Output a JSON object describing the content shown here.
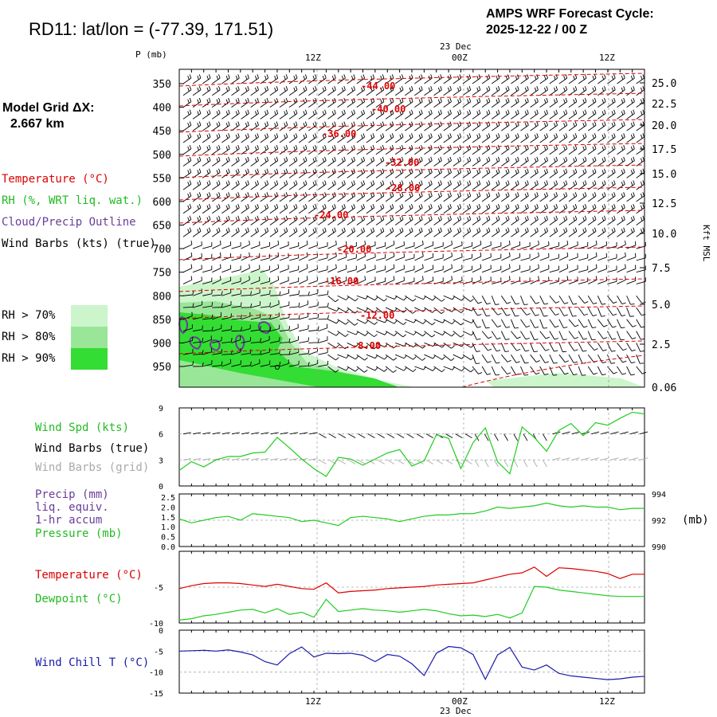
{
  "header": {
    "station_title": "RD11:  lat/lon = (-77.39, 171.51)",
    "cycle_line1": "AMPS WRF Forecast Cycle:",
    "cycle_line2": "2025-12-22 / 00  Z",
    "grid_line1": "Model Grid ΔX:",
    "grid_line2": "2.667 km"
  },
  "time_axis": {
    "date_label": "23 Dec",
    "ticks": [
      "12Z",
      "00Z",
      "12Z"
    ]
  },
  "legend": {
    "temperature": "Temperature (°C)",
    "rh": "RH (%, WRT liq. wat.)",
    "cloud": "Cloud/Precip Outline",
    "wind_barbs": "Wind Barbs (kts) (true)",
    "rh_levels": [
      "RH > 70%",
      "RH > 80%",
      "RH > 90%"
    ],
    "rh_colors": [
      "#ccf5cc",
      "#99e699",
      "#33dd33"
    ],
    "wind_spd": "Wind Spd (kts)",
    "wind_barbs_true": "Wind Barbs (true)",
    "wind_barbs_grid": "Wind Barbs (grid)",
    "precip_1": "Precip (mm)",
    "precip_2": "liq. equiv.",
    "precip_3": "1-hr accum",
    "pressure": "Pressure (mb)",
    "pressure_unit": "(mb)",
    "temp": "Temperature (°C)",
    "dewpoint": "Dewpoint (°C)",
    "wind_chill": "Wind Chill T (°C)"
  },
  "colors": {
    "temperature": "#dd0000",
    "rh_line": "#22cc22",
    "cloud": "#6a3d9a",
    "barbs_grid": "#aaaaaa",
    "wind_chill": "#1a1aaa"
  },
  "chart_data": [
    {
      "type": "heatmap",
      "panel": "time-height cross section",
      "ylabel": "P (mb)",
      "pressure_ticks": [
        350,
        400,
        450,
        500,
        550,
        600,
        650,
        700,
        750,
        800,
        850,
        900,
        950
      ],
      "right_axis_label": "Kft MSL",
      "right_ticks": [
        "25.0",
        "22.5",
        "20.0",
        "17.5",
        "15.0",
        "12.5",
        "10.0",
        "7.5",
        "5.0",
        "2.5",
        "0.06"
      ],
      "isotherm_labels": [
        "-44.00",
        "-40.00",
        "-36.00",
        "-32.00",
        "-28.00",
        "-24.00",
        "-20.00",
        "-16.00",
        "-12.00",
        "-8.00"
      ]
    },
    {
      "type": "line",
      "panel": "wind speed",
      "ylim": [
        0,
        9
      ],
      "ytick_labels": [
        "9",
        "6",
        "3",
        "0"
      ],
      "x_hours": [
        0,
        1,
        2,
        3,
        4,
        5,
        6,
        7,
        8,
        9,
        10,
        11,
        12,
        13,
        14,
        15,
        16,
        17,
        18,
        19,
        20,
        21,
        22,
        23,
        24,
        25,
        26,
        27,
        28,
        29,
        30,
        31,
        32,
        33,
        34,
        35,
        36,
        37,
        38
      ],
      "series": [
        {
          "values": [
            1.8,
            2.8,
            2.2,
            3.0,
            3.4,
            3.4,
            3.8,
            3.9,
            5.6,
            4.4,
            3.1,
            2.0,
            1.1,
            3.3,
            3.1,
            2.4,
            3.1,
            3.8,
            4.2,
            2.3,
            2.9,
            5.9,
            5.5,
            2.0,
            5.0,
            6.7,
            2.8,
            1.4,
            6.8,
            5.6,
            4.0,
            6.4,
            7.2,
            5.8,
            7.3,
            7.0,
            7.8,
            8.5,
            8.3
          ]
        }
      ]
    },
    {
      "type": "line",
      "panel": "precip and pressure",
      "left_ticks": [
        "2.5",
        "2.0",
        "1.5",
        "1.0",
        "0.5",
        "0.0"
      ],
      "right_ticks": [
        "994",
        "992",
        "990"
      ],
      "x_hours": [
        0,
        1,
        2,
        3,
        4,
        5,
        6,
        7,
        8,
        9,
        10,
        11,
        12,
        13,
        14,
        15,
        16,
        17,
        18,
        19,
        20,
        21,
        22,
        23,
        24,
        25,
        26,
        27,
        28,
        29,
        30,
        31,
        32,
        33,
        34,
        35,
        36,
        37,
        38
      ],
      "series": [
        {
          "values": [
            992.1,
            991.8,
            992.0,
            992.2,
            992.3,
            992.0,
            992.5,
            992.4,
            992.3,
            992.2,
            991.9,
            992.0,
            991.8,
            991.6,
            992.2,
            992.3,
            992.2,
            992.1,
            991.9,
            992.1,
            992.3,
            992.4,
            992.4,
            992.5,
            992.5,
            992.7,
            993.0,
            992.9,
            993.0,
            993.1,
            993.3,
            993.1,
            993.0,
            993.1,
            993.0,
            993.0,
            992.8,
            992.9,
            992.9
          ]
        }
      ]
    },
    {
      "type": "line",
      "panel": "temperature and dewpoint",
      "ylim": [
        -10,
        0
      ],
      "ytick_labels": [
        "-5",
        "-10"
      ],
      "x_hours": [
        0,
        1,
        2,
        3,
        4,
        5,
        6,
        7,
        8,
        9,
        10,
        11,
        12,
        13,
        14,
        15,
        16,
        17,
        18,
        19,
        20,
        21,
        22,
        23,
        24,
        25,
        26,
        27,
        28,
        29,
        30,
        31,
        32,
        33,
        34,
        35,
        36,
        37,
        38
      ],
      "series": [
        {
          "values": [
            -5.2,
            -4.8,
            -4.5,
            -4.4,
            -4.4,
            -4.5,
            -4.7,
            -4.9,
            -4.6,
            -4.9,
            -5.2,
            -5.3,
            -4.4,
            -5.8,
            -5.6,
            -5.5,
            -5.4,
            -5.2,
            -5.1,
            -5.0,
            -4.9,
            -4.7,
            -4.6,
            -4.5,
            -4.4,
            -4.0,
            -3.6,
            -3.2,
            -3.0,
            -2.2,
            -3.5,
            -2.3,
            -2.4,
            -2.6,
            -2.8,
            -3.1,
            -3.8,
            -3.2,
            -3.2
          ]
        },
        {
          "values": [
            -9.6,
            -9.4,
            -9.0,
            -8.8,
            -8.5,
            -8.2,
            -8.1,
            -8.6,
            -8.0,
            -8.8,
            -8.5,
            -9.2,
            -6.7,
            -8.4,
            -8.2,
            -8.0,
            -8.2,
            -8.3,
            -8.5,
            -8.3,
            -8.1,
            -8.3,
            -8.7,
            -9.0,
            -8.9,
            -9.1,
            -8.8,
            -9.3,
            -8.6,
            -4.9,
            -5.0,
            -5.4,
            -5.6,
            -5.8,
            -6.0,
            -6.2,
            -6.3,
            -6.3,
            -6.3
          ]
        }
      ]
    },
    {
      "type": "line",
      "panel": "wind chill",
      "ylim": [
        -15,
        0
      ],
      "ytick_labels": [
        "0",
        "-5",
        "-10",
        "-15"
      ],
      "x_hours": [
        0,
        1,
        2,
        3,
        4,
        5,
        6,
        7,
        8,
        9,
        10,
        11,
        12,
        13,
        14,
        15,
        16,
        17,
        18,
        19,
        20,
        21,
        22,
        23,
        24,
        25,
        26,
        27,
        28,
        29,
        30,
        31,
        32,
        33,
        34,
        35,
        36,
        37,
        38
      ],
      "series": [
        {
          "values": [
            -5.0,
            -4.9,
            -4.8,
            -5.0,
            -4.7,
            -5.2,
            -5.9,
            -7.5,
            -8.3,
            -5.6,
            -4.0,
            -6.4,
            -5.5,
            -5.6,
            -5.5,
            -6.0,
            -7.5,
            -5.8,
            -6.2,
            -8.0,
            -10.8,
            -5.5,
            -3.9,
            -4.2,
            -5.8,
            -11.7,
            -5.9,
            -4.1,
            -8.8,
            -9.5,
            -8.3,
            -10.3,
            -10.9,
            -11.2,
            -11.5,
            -11.8,
            -11.6,
            -11.2,
            -11.0
          ]
        }
      ]
    }
  ]
}
